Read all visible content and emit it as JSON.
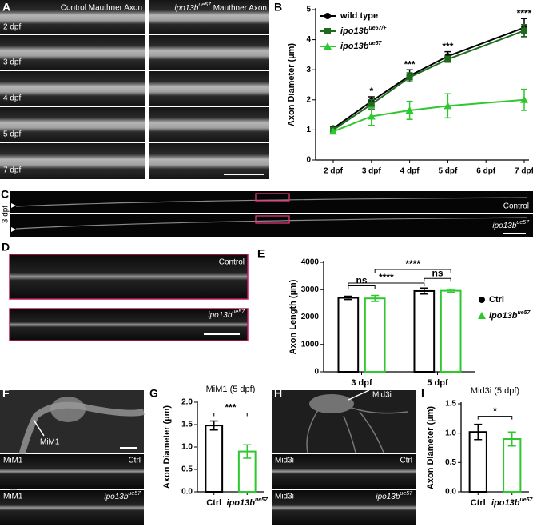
{
  "letters": [
    "A",
    "B",
    "C",
    "D",
    "E",
    "F",
    "G",
    "H",
    "I"
  ],
  "panel_a": {
    "control_title": "Control Mauthner Axon",
    "mutant_title": "ipo13b",
    "mutant_sup": "ue57",
    "mutant_rest": " Mauthner Axon",
    "rows": [
      "2 dpf",
      "3 dpf",
      "4 dpf",
      "5 dpf",
      "7 dpf"
    ]
  },
  "panel_c": {
    "stage": "3 dpf",
    "control": "Control",
    "mutant": "ipo13b",
    "mutant_sup": "ue57"
  },
  "panel_d": {
    "control": "Control",
    "mutant": "ipo13b",
    "mutant_sup": "ue57"
  },
  "panel_f": {
    "arrow_label": "MiM1",
    "strips": [
      {
        "cell": "MiM1",
        "genotype": "Ctrl"
      },
      {
        "cell": "MiM1",
        "genotype": "ipo13b",
        "genotype_sup": "ue57"
      }
    ]
  },
  "panel_h": {
    "arrow_label": "Mid3i",
    "strips": [
      {
        "cell": "Mid3i",
        "genotype": "Ctrl"
      },
      {
        "cell": "Mid3i",
        "genotype": "ipo13b",
        "genotype_sup": "ue57"
      }
    ]
  },
  "chart_data": [
    {
      "type": "line",
      "ylabel": "Axon Diameter (µm)",
      "categories": [
        "2 dpf",
        "3 dpf",
        "4 dpf",
        "5 dpf",
        "6 dpf",
        "7 dpf"
      ],
      "series": [
        {
          "name": "wild type",
          "color": "#000000",
          "marker": "circle",
          "values": [
            1.05,
            1.95,
            2.8,
            3.45,
            null,
            4.4
          ],
          "errors": [
            0.05,
            0.15,
            0.2,
            0.15,
            null,
            0.3
          ]
        },
        {
          "name": "ipo13b",
          "name_sup": "ue57/+",
          "color": "#1e6b1e",
          "marker": "square",
          "values": [
            1.0,
            1.85,
            2.75,
            3.35,
            null,
            4.3
          ],
          "errors": [
            0.05,
            0.15,
            0.15,
            0.1,
            null,
            0.2
          ]
        },
        {
          "name": "ipo13b",
          "name_sup": "ue57",
          "color": "#2ec82e",
          "marker": "triangle",
          "values": [
            0.95,
            1.45,
            1.65,
            1.8,
            null,
            2.0
          ],
          "errors": [
            0.05,
            0.3,
            0.3,
            0.4,
            null,
            0.35
          ]
        }
      ],
      "annotations": [
        null,
        "*",
        "***",
        "***",
        null,
        "****"
      ],
      "ylim": [
        0,
        5
      ],
      "yticks": [
        0,
        1,
        2,
        3,
        4,
        5
      ]
    },
    {
      "type": "bar",
      "ylabel": "Axon Length (µm)",
      "categories": [
        "3 dpf",
        "5 dpf"
      ],
      "series": [
        {
          "name": "Ctrl",
          "color": "#000000",
          "marker": "circle",
          "values": [
            2700,
            2950
          ],
          "errors": [
            60,
            110
          ]
        },
        {
          "name": "ipo13b",
          "name_sup": "ue57",
          "color": "#2ec82e",
          "marker": "triangle",
          "values": [
            2680,
            2960
          ],
          "errors": [
            110,
            60
          ]
        }
      ],
      "group_annotations": [
        "ns",
        "ns"
      ],
      "comparisons": [
        "****",
        "****"
      ],
      "ylim": [
        0,
        4000
      ],
      "yticks": [
        0,
        1000,
        2000,
        3000,
        4000
      ]
    },
    {
      "type": "bar",
      "title": "MiM1 (5 dpf)",
      "ylabel": "Axon Diameter (µm)",
      "categories": [
        "Ctrl",
        "ipo13b"
      ],
      "category_sup": [
        null,
        "ue57"
      ],
      "values": [
        1.48,
        0.9
      ],
      "errors": [
        0.1,
        0.15
      ],
      "colors": [
        "#000000",
        "#2ec82e"
      ],
      "comparison": "***",
      "ylim": [
        0,
        2.0
      ],
      "yticks": [
        {
          "value": 0,
          "label": "0.0"
        },
        {
          "value": 0.5,
          "label": "0.5"
        },
        {
          "value": 1,
          "label": "1.0"
        },
        {
          "value": 1.5,
          "label": "1.5"
        },
        {
          "value": 2,
          "label": "2.0"
        }
      ]
    },
    {
      "type": "bar",
      "title": "Mid3i (5 dpf)",
      "ylabel": "Axon Diameter (µm)",
      "categories": [
        "Ctrl",
        "ipo13b"
      ],
      "category_sup": [
        null,
        "ue57"
      ],
      "values": [
        1.02,
        0.9
      ],
      "errors": [
        0.13,
        0.12
      ],
      "colors": [
        "#000000",
        "#2ec82e"
      ],
      "comparison": "*",
      "ylim": [
        0,
        1.5
      ],
      "yticks": [
        {
          "value": 0,
          "label": "0.0"
        },
        {
          "value": 0.5,
          "label": "0.5"
        },
        {
          "value": 1,
          "label": "1.0"
        },
        {
          "value": 1.5,
          "label": "1.5"
        }
      ]
    }
  ]
}
